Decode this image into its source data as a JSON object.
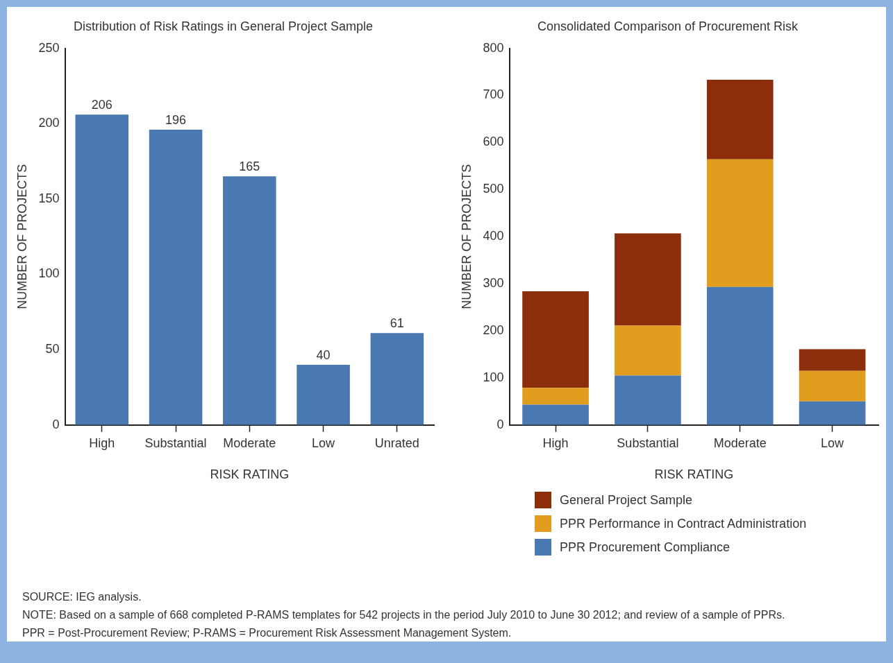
{
  "chart_data": [
    {
      "type": "bar",
      "title": "Distribution of Risk Ratings in General Project Sample",
      "xlabel": "RISK RATING",
      "ylabel": "NUMBER OF PROJECTS",
      "categories": [
        "High",
        "Substantial",
        "Moderate",
        "Low",
        "Unrated"
      ],
      "values": [
        206,
        196,
        165,
        40,
        61
      ],
      "color": "#4a78b0",
      "ylim": [
        0,
        250
      ],
      "yticks": [
        0,
        50,
        100,
        150,
        200,
        250
      ],
      "data_labels": true,
      "annotations": [
        "SOURCE: IEG analysis.",
        "NOTE: Based on a sample of 668 completed P-RAMS templates for 542 projects in the period July 2010 to June 30 2012; and review of a sample of PPRs.",
        "PPR = Post-Procurement Review; P-RAMS = Procurement Risk Assessment Management System."
      ]
    },
    {
      "type": "bar",
      "title": "Consolidated Comparison of Procurement Risk",
      "xlabel": "RISK RATING",
      "ylabel": "NUMBER OF PROJECTS",
      "categories": [
        "High",
        "Substantial",
        "Moderate",
        "Low"
      ],
      "stacked": true,
      "ylim": [
        0,
        800
      ],
      "yticks": [
        0,
        100,
        200,
        300,
        400,
        500,
        600,
        700,
        800
      ],
      "legend": "bottom",
      "series": [
        {
          "name": "PPR Procurement Compliance",
          "color": "#4a78b0",
          "values": [
            43,
            105,
            293,
            50
          ]
        },
        {
          "name": "PPR Performance in Contract Administration",
          "color": "#e19e1e",
          "values": [
            36,
            106,
            271,
            65
          ]
        },
        {
          "name": "General Project Sample",
          "color": "#8c2d0c",
          "values": [
            205,
            196,
            169,
            46
          ]
        }
      ]
    }
  ]
}
